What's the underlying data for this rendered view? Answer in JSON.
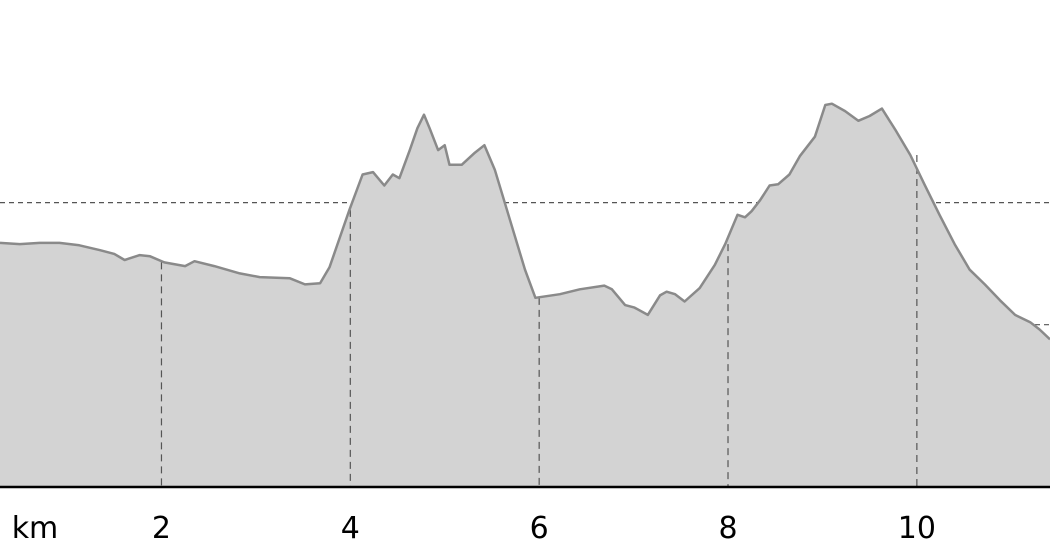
{
  "chart_data": {
    "type": "area",
    "title": "",
    "xlabel": "km",
    "ylabel": "",
    "xlim": [
      0.29,
      11.41
    ],
    "ylim": [
      67,
      466
    ],
    "x_ticks": [
      2,
      4,
      6,
      8,
      10
    ],
    "y_grid": [
      100,
      200,
      300
    ],
    "grid": true,
    "colors": {
      "fill": "#d3d3d3",
      "line": "#8a8a8a",
      "grid": "#555555",
      "axis": "#000000"
    },
    "series": [
      {
        "x": [
          0.29,
          0.5,
          0.71,
          0.92,
          1.13,
          1.35,
          1.5,
          1.61,
          1.77,
          1.88,
          2.03,
          2.25,
          2.35,
          2.56,
          2.83,
          3.04,
          3.36,
          3.52,
          3.68,
          3.78,
          3.99,
          4.13,
          4.24,
          4.36,
          4.45,
          4.52,
          4.63,
          4.71,
          4.78,
          4.84,
          4.93,
          5.0,
          5.05,
          5.18,
          5.32,
          5.42,
          5.53,
          5.69,
          5.85,
          5.96,
          6.22,
          6.43,
          6.69,
          6.77,
          6.91,
          7.01,
          7.15,
          7.28,
          7.35,
          7.44,
          7.54,
          7.7,
          7.86,
          7.97,
          8.1,
          8.18,
          8.25,
          8.34,
          8.44,
          8.53,
          8.65,
          8.76,
          8.92,
          9.03,
          9.1,
          9.24,
          9.38,
          9.5,
          9.63,
          9.77,
          9.93,
          10.08,
          10.24,
          10.4,
          10.56,
          10.72,
          10.88,
          11.04,
          11.2,
          11.3,
          11.41
        ],
        "y": [
          267,
          266,
          267,
          267,
          265,
          261,
          258,
          253,
          257,
          256,
          251,
          248,
          252,
          248,
          242,
          239,
          238,
          233,
          234,
          247,
          294,
          323,
          325,
          314,
          323,
          320,
          343,
          361,
          372,
          361,
          343,
          347,
          331,
          331,
          341,
          347,
          327,
          286,
          245,
          222,
          225,
          229,
          232,
          229,
          216,
          214,
          208,
          224,
          227,
          225,
          219,
          230,
          249,
          266,
          290,
          288,
          293,
          302,
          314,
          315,
          323,
          338,
          354,
          380,
          381,
          375,
          367,
          371,
          377,
          360,
          339,
          315,
          290,
          266,
          245,
          233,
          220,
          208,
          202,
          196,
          188
        ]
      }
    ]
  }
}
